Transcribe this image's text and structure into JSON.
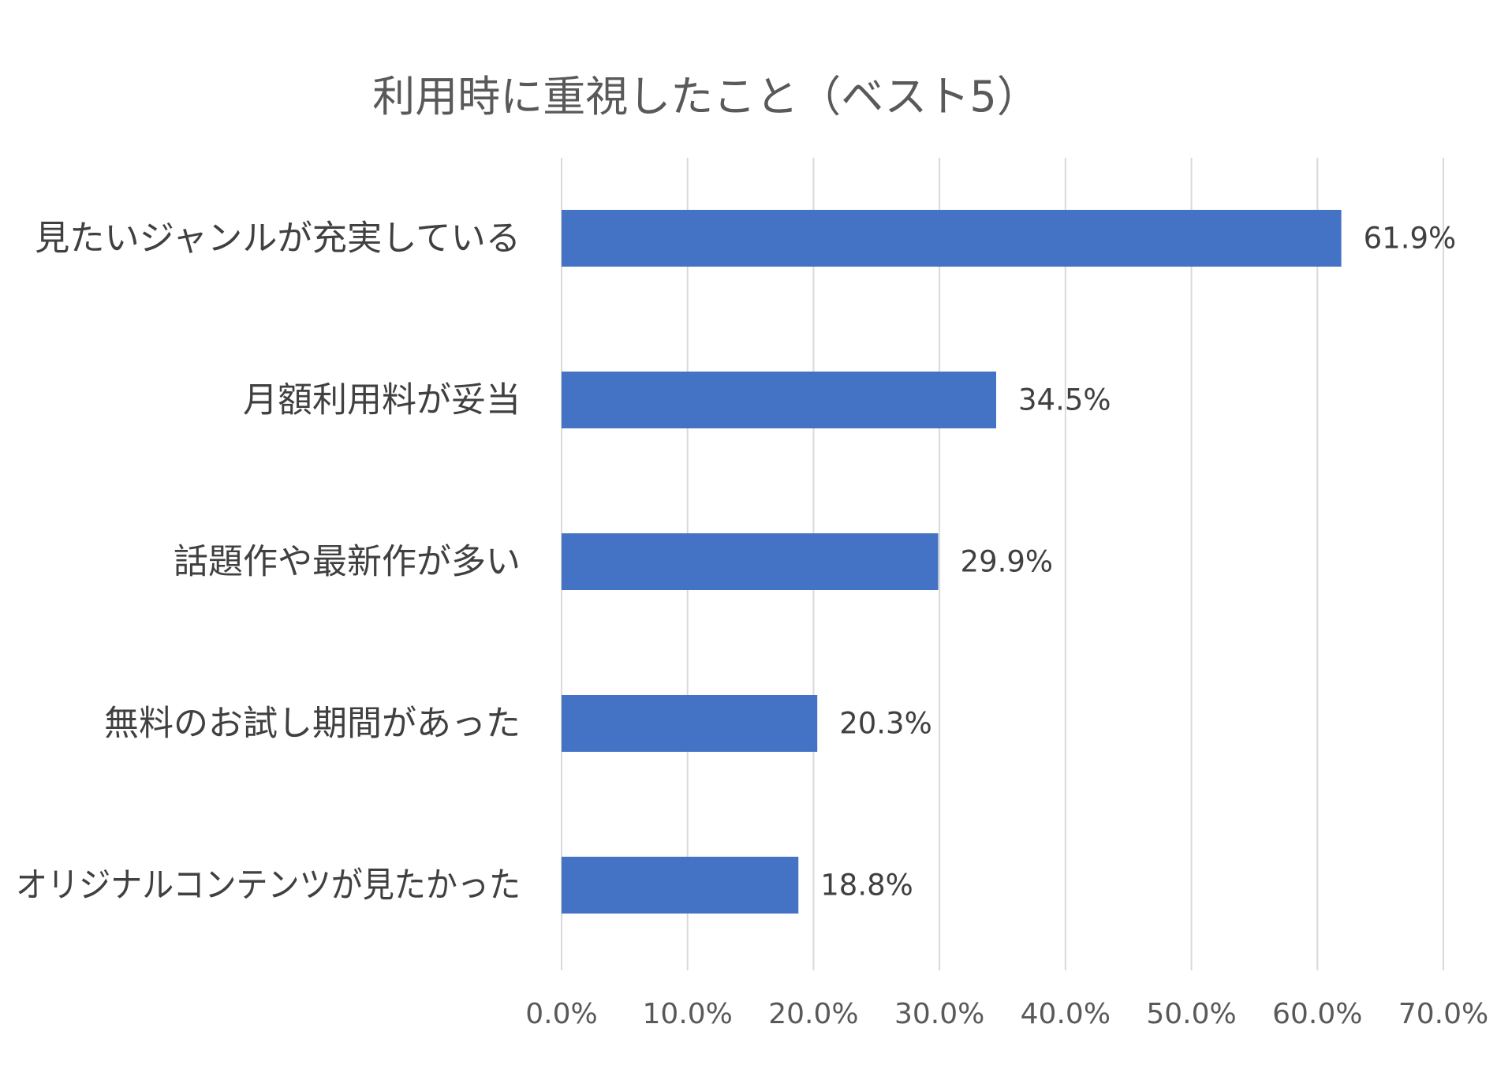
{
  "chart_data": {
    "type": "bar",
    "orientation": "horizontal",
    "title": "利用時に重視したこと（ベスト5）",
    "xlabel": "",
    "ylabel": "",
    "categories": [
      "見たいジャンルが充実している",
      "月額利用料が妥当",
      "話題作や最新作が多い",
      "無料のお試し期間があった",
      "オリジナルコンテンツが見たかった"
    ],
    "values": [
      61.9,
      34.5,
      29.9,
      20.3,
      18.8
    ],
    "value_labels": [
      "61.9%",
      "34.5%",
      "29.9%",
      "20.3%",
      "18.8%"
    ],
    "xlim": [
      0,
      70
    ],
    "xticks": [
      0,
      10,
      20,
      30,
      40,
      50,
      60,
      70
    ],
    "xtick_labels": [
      "0.0%",
      "10.0%",
      "20.0%",
      "30.0%",
      "40.0%",
      "50.0%",
      "60.0%",
      "70.0%"
    ],
    "grid": "vertical",
    "legend": "none",
    "bar_color": "#4472C4",
    "grid_color": "#D9D9D9",
    "text_color": "#595959",
    "label_color": "#404040"
  }
}
